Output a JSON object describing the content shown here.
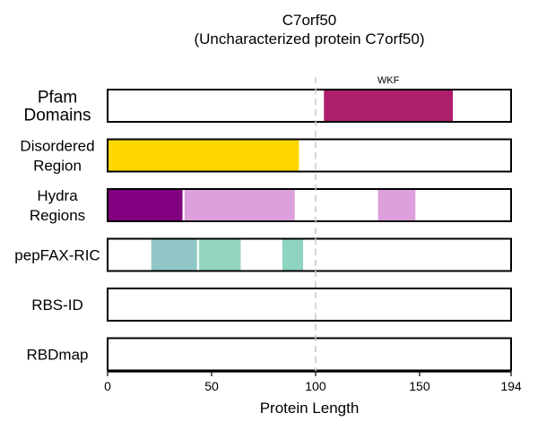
{
  "chart_data": {
    "type": "bar",
    "title_lines": [
      "C7orf50",
      "(Uncharacterized protein C7orf50)"
    ],
    "xlabel": "Protein Length",
    "xlim": [
      0,
      194
    ],
    "xticks": [
      0,
      50,
      100,
      150,
      194
    ],
    "reference_line_x": 100,
    "tracks": [
      {
        "label_lines": [
          "Pfam",
          "Domains"
        ],
        "segments": [
          {
            "start": 104,
            "end": 166,
            "color": "#ad1f6b",
            "annotation": "WKF"
          }
        ]
      },
      {
        "label_lines": [
          "Disordered",
          "Region"
        ],
        "segments": [
          {
            "start": 0,
            "end": 92,
            "color": "#ffd700"
          }
        ]
      },
      {
        "label_lines": [
          "Hydra",
          "Regions"
        ],
        "segments": [
          {
            "start": 0,
            "end": 36,
            "color": "#800080"
          },
          {
            "start": 37,
            "end": 90,
            "color": "#dda0dd"
          },
          {
            "start": 130,
            "end": 148,
            "color": "#dda0dd"
          }
        ]
      },
      {
        "label_lines": [
          "pepFAX-RIC"
        ],
        "segments": [
          {
            "start": 21,
            "end": 43,
            "color": "#92c7c7"
          },
          {
            "start": 44,
            "end": 64,
            "color": "#94d6bd"
          },
          {
            "start": 84,
            "end": 94,
            "color": "#8fd4c1"
          }
        ]
      },
      {
        "label_lines": [
          "RBS-ID"
        ],
        "segments": []
      },
      {
        "label_lines": [
          "RBDmap"
        ],
        "segments": []
      }
    ]
  }
}
